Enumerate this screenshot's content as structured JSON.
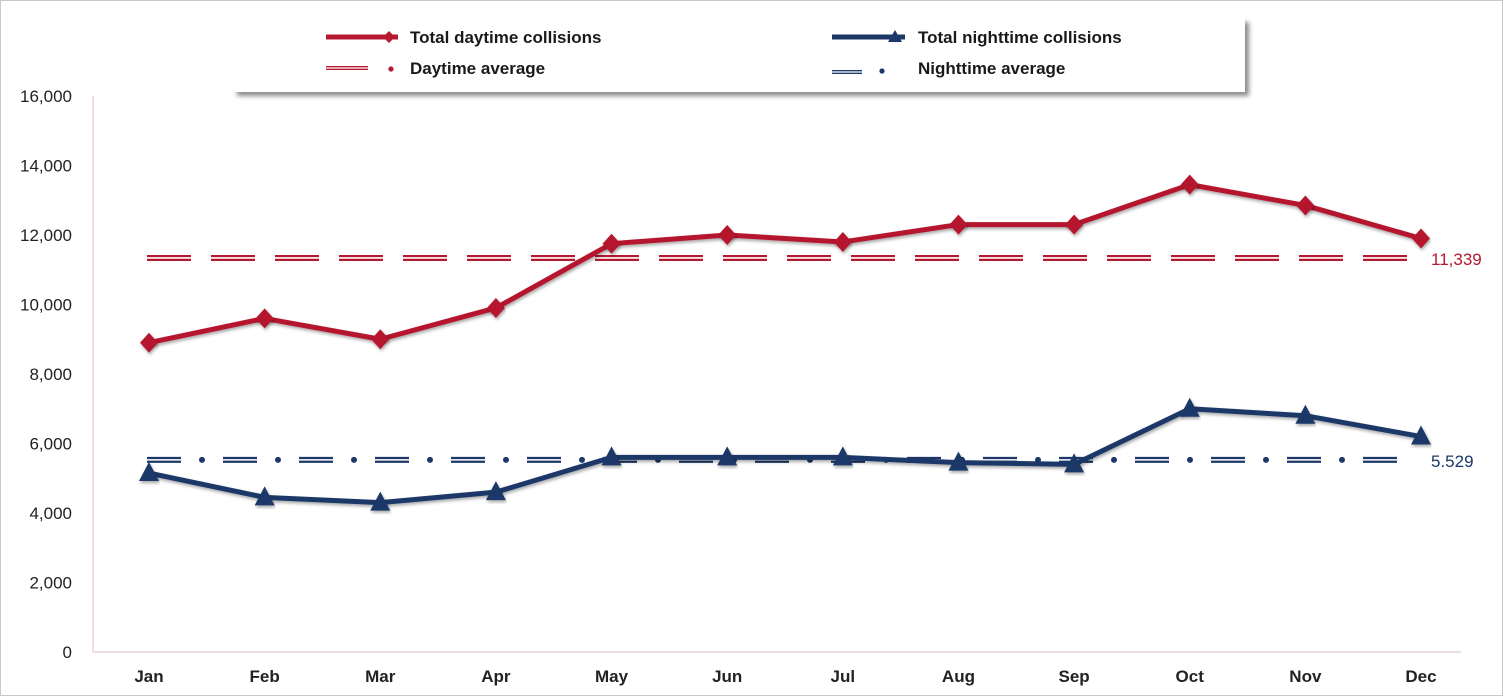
{
  "chart_data": {
    "type": "line",
    "title": "",
    "xlabel": "",
    "ylabel": "",
    "ylim": [
      0,
      16000
    ],
    "yticks": [
      "0",
      "2,000",
      "4,000",
      "6,000",
      "8,000",
      "10,000",
      "12,000",
      "14,000",
      "16,000"
    ],
    "ytick_values": [
      0,
      2000,
      4000,
      6000,
      8000,
      10000,
      12000,
      14000,
      16000
    ],
    "categories": [
      "Jan",
      "Feb",
      "Mar",
      "Apr",
      "May",
      "Jun",
      "Jul",
      "Aug",
      "Sep",
      "Oct",
      "Nov",
      "Dec"
    ],
    "grid": false,
    "legend_position": "top",
    "series": [
      {
        "name": "Total daytime collisions",
        "color": "#b5182f",
        "marker": "diamond",
        "values": [
          8900,
          9600,
          9000,
          9900,
          11750,
          12000,
          11800,
          12300,
          12300,
          13450,
          12850,
          11900
        ]
      },
      {
        "name": "Total nighttime collisions",
        "color": "#1b3868",
        "marker": "triangle",
        "values": [
          5150,
          4450,
          4300,
          4600,
          5600,
          5600,
          5600,
          5450,
          5400,
          7000,
          6800,
          6200
        ]
      }
    ],
    "reference_lines": [
      {
        "name": "Daytime average",
        "value": 11339,
        "label": "11,339",
        "color": "#b5182f",
        "style": "dashed"
      },
      {
        "name": "Nighttime average",
        "value": 5529,
        "label": "5.529",
        "color": "#1b3868",
        "style": "dash-dot"
      }
    ]
  }
}
